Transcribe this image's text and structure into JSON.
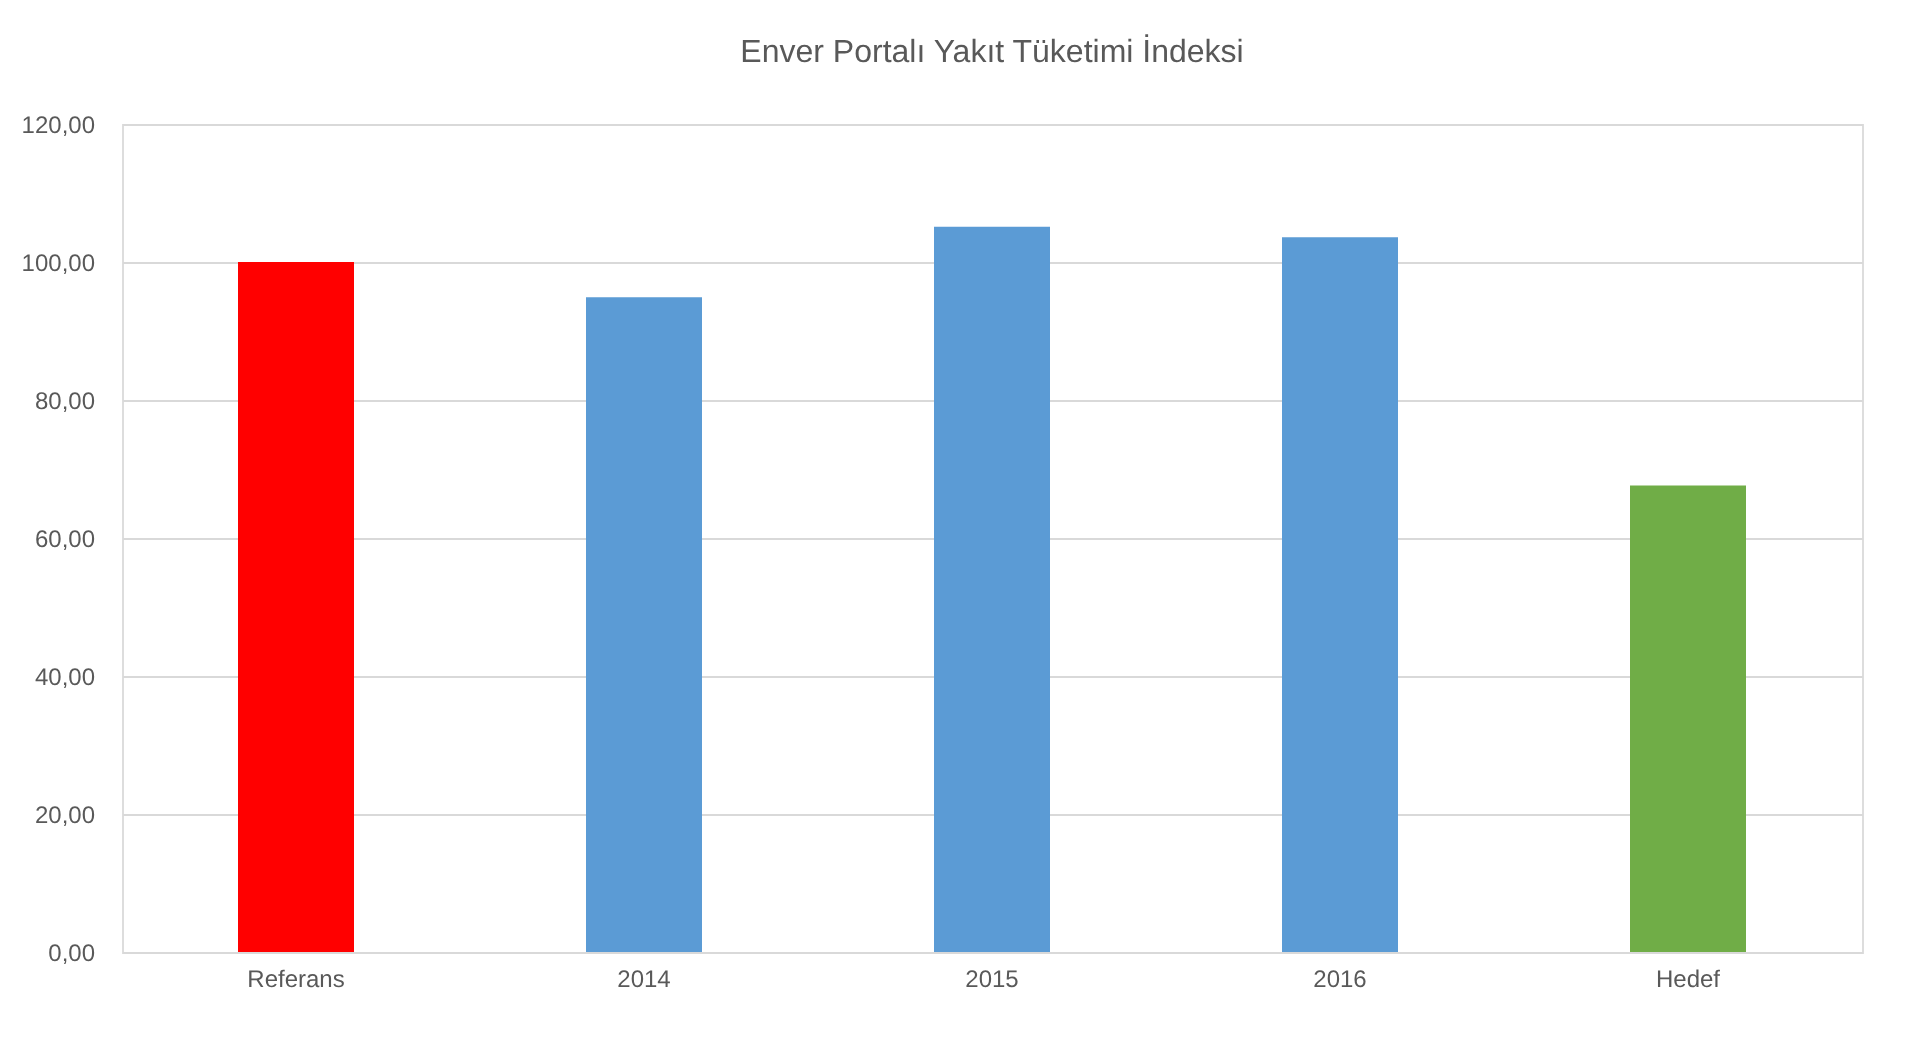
{
  "chart_data": {
    "type": "bar",
    "title": "Enver Portalı Yakıt Tüketimi İndeksi",
    "categories": [
      "Referans",
      "2014",
      "2015",
      "2016",
      "Hedef"
    ],
    "values": [
      100,
      94.9,
      105.1,
      103.6,
      67.6
    ],
    "colors": [
      "#ff0000",
      "#5b9bd5",
      "#5b9bd5",
      "#5b9bd5",
      "#70ad47"
    ],
    "ylim": [
      0,
      120
    ],
    "yticks": [
      {
        "value": 0,
        "label": "0,00"
      },
      {
        "value": 20,
        "label": "20,00"
      },
      {
        "value": 40,
        "label": "40,00"
      },
      {
        "value": 60,
        "label": "60,00"
      },
      {
        "value": 80,
        "label": "80,00"
      },
      {
        "value": 100,
        "label": "100,00"
      },
      {
        "value": 120,
        "label": "120,00"
      }
    ],
    "grid": "y",
    "legend": false
  }
}
